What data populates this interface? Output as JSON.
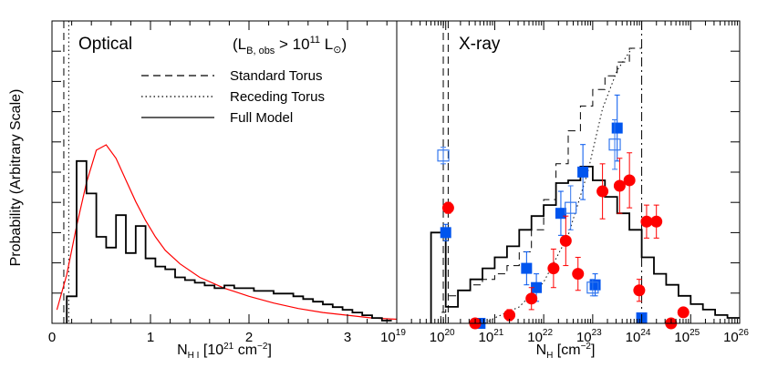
{
  "chart_data": [
    {
      "type": "line",
      "panel": "left",
      "title": "Optical",
      "subtitle": "(L_B,obs > 10^11 L_sun)",
      "title_text": "Optical",
      "subtitle_parts": {
        "open": "(L",
        "sub": "B, obs",
        "mid": " > 10",
        "sup": "11",
        "end": " L",
        "sun": "⊙",
        "close": ")"
      },
      "xlabel_parts": {
        "main": "N",
        "sub": "H I",
        "unit": " [10",
        "sup": "21",
        "tail": " cm",
        "sup2": "−2",
        "close": "]"
      },
      "ylabel": "Probability (Arbitrary Scale)",
      "xlim": [
        0,
        3.5
      ],
      "ylim": [
        0,
        1
      ],
      "xticks": [
        {
          "v": 0,
          "label": "0"
        },
        {
          "v": 1,
          "label": "1"
        },
        {
          "v": 2,
          "label": "2"
        },
        {
          "v": 3,
          "label": "3"
        }
      ],
      "legend": {
        "position": "top-center",
        "entries": [
          {
            "label": "Standard Torus",
            "style": "dashed"
          },
          {
            "label": "Receding Torus",
            "style": "dotted"
          },
          {
            "label": "Full Model",
            "style": "solid"
          }
        ]
      },
      "vlines": [
        {
          "x": 0.12,
          "style": "dashed"
        },
        {
          "x": 0.17,
          "style": "dotted"
        }
      ],
      "histogram": {
        "name": "Full Model",
        "edges": [
          0.15,
          0.25,
          0.35,
          0.45,
          0.55,
          0.65,
          0.75,
          0.85,
          0.95,
          1.05,
          1.15,
          1.25,
          1.35,
          1.45,
          1.55,
          1.65,
          1.75,
          1.85,
          1.95,
          2.05,
          2.15,
          2.25,
          2.35,
          2.45,
          2.55,
          2.65,
          2.75,
          2.85,
          2.95,
          3.05,
          3.15,
          3.25,
          3.35,
          3.45
        ],
        "values": [
          0.1,
          0.6,
          0.48,
          0.32,
          0.28,
          0.4,
          0.26,
          0.36,
          0.24,
          0.21,
          0.2,
          0.17,
          0.16,
          0.15,
          0.14,
          0.13,
          0.14,
          0.13,
          0.13,
          0.12,
          0.12,
          0.11,
          0.11,
          0.1,
          0.09,
          0.08,
          0.07,
          0.06,
          0.05,
          0.04,
          0.03,
          0.02,
          0.01
        ]
      },
      "curve": {
        "name": "Red model",
        "color": "#ff0000",
        "x": [
          0.05,
          0.15,
          0.25,
          0.35,
          0.45,
          0.55,
          0.65,
          0.75,
          0.85,
          0.95,
          1.05,
          1.15,
          1.3,
          1.5,
          1.75,
          2.0,
          2.25,
          2.5,
          2.75,
          3.0,
          3.25,
          3.5
        ],
        "y": [
          0.05,
          0.18,
          0.36,
          0.52,
          0.64,
          0.66,
          0.61,
          0.53,
          0.45,
          0.38,
          0.32,
          0.27,
          0.22,
          0.17,
          0.13,
          0.1,
          0.075,
          0.055,
          0.04,
          0.03,
          0.02,
          0.015
        ]
      }
    },
    {
      "type": "scatter",
      "panel": "right",
      "title": "X-ray",
      "xlabel_parts": {
        "main": "N",
        "sub": "H",
        "unit": " [cm",
        "sup": "−2",
        "close": "]"
      },
      "xscale": "log",
      "xlim": [
        19,
        26
      ],
      "ylim": [
        0,
        1
      ],
      "xticks": [
        {
          "v": 19,
          "base": "10",
          "exp": "19"
        },
        {
          "v": 20,
          "base": "10",
          "exp": "20"
        },
        {
          "v": 21,
          "base": "10",
          "exp": "21"
        },
        {
          "v": 22,
          "base": "10",
          "exp": "22"
        },
        {
          "v": 23,
          "base": "10",
          "exp": "23"
        },
        {
          "v": 24,
          "base": "10",
          "exp": "24"
        },
        {
          "v": 25,
          "base": "10",
          "exp": "25"
        },
        {
          "v": 26,
          "base": "10",
          "exp": "26"
        }
      ],
      "vlines": [
        {
          "x": 19.95,
          "style": "dashed"
        },
        {
          "x": 20.05,
          "style": "dashed"
        },
        {
          "x": 24.0,
          "style": "dashdot"
        }
      ],
      "steps": [
        {
          "name": "Standard Torus",
          "style": "dashed",
          "edges": [
            19.9,
            20.0,
            20.25,
            20.5,
            20.75,
            21.0,
            21.25,
            21.5,
            21.75,
            22.0,
            22.25,
            22.5,
            22.75,
            23.0,
            23.25,
            23.5,
            23.75,
            24.0
          ],
          "values": [
            0.04,
            0.1,
            0.12,
            0.14,
            0.16,
            0.18,
            0.21,
            0.26,
            0.34,
            0.45,
            0.58,
            0.7,
            0.79,
            0.85,
            0.9,
            0.95,
            1.0
          ]
        },
        {
          "name": "Full Model",
          "style": "solid",
          "edges": [
            19.7,
            19.9,
            20.0,
            20.25,
            20.5,
            20.75,
            21.0,
            21.25,
            21.5,
            21.75,
            22.0,
            22.25,
            22.5,
            22.75,
            23.0,
            23.25,
            23.5,
            23.75,
            24.0,
            24.25,
            24.5,
            24.75,
            25.0,
            25.25,
            25.5,
            25.75,
            26.0
          ],
          "values": [
            0.33,
            0.33,
            0.06,
            0.12,
            0.16,
            0.2,
            0.24,
            0.28,
            0.34,
            0.39,
            0.43,
            0.51,
            0.52,
            0.57,
            0.52,
            0.46,
            0.4,
            0.34,
            0.24,
            0.18,
            0.14,
            0.1,
            0.07,
            0.05,
            0.03,
            0.02
          ]
        }
      ],
      "curves": [
        {
          "name": "Receding Torus",
          "style": "dotted",
          "x": [
            20.8,
            21.0,
            21.5,
            22.0,
            22.5,
            22.9,
            23.2,
            23.5,
            23.8
          ],
          "y": [
            0.0,
            0.02,
            0.06,
            0.15,
            0.32,
            0.55,
            0.78,
            0.92,
            1.0
          ]
        }
      ],
      "series": [
        {
          "name": "Filled squares",
          "marker": "square",
          "filled": true,
          "color": "#0055ee",
          "points": [
            {
              "x": 20.0,
              "y": 0.33,
              "err": 0.03
            },
            {
              "x": 20.7,
              "y": 0.0,
              "err": 0.0
            },
            {
              "x": 21.65,
              "y": 0.2,
              "err": 0.06
            },
            {
              "x": 21.85,
              "y": 0.13,
              "err": 0.05
            },
            {
              "x": 22.35,
              "y": 0.4,
              "err": 0.08
            },
            {
              "x": 22.8,
              "y": 0.55,
              "err": 0.1
            },
            {
              "x": 23.5,
              "y": 0.71,
              "err": 0.12
            },
            {
              "x": 23.05,
              "y": 0.14,
              "err": 0.04
            },
            {
              "x": 24.0,
              "y": 0.02,
              "err": 0.0
            }
          ]
        },
        {
          "name": "Open squares",
          "marker": "square",
          "filled": false,
          "color": "#3377ee",
          "points": [
            {
              "x": 19.95,
              "y": 0.61,
              "err": 0.03
            },
            {
              "x": 22.55,
              "y": 0.42,
              "err": 0.08
            },
            {
              "x": 23.45,
              "y": 0.65,
              "err": 0.09
            },
            {
              "x": 23.0,
              "y": 0.13,
              "err": 0.03
            }
          ]
        },
        {
          "name": "Red circles",
          "marker": "circle",
          "filled": true,
          "color": "#ff0000",
          "points": [
            {
              "x": 20.05,
              "y": 0.42,
              "err": 0.02
            },
            {
              "x": 20.6,
              "y": 0.0,
              "err": 0.0
            },
            {
              "x": 21.3,
              "y": 0.03,
              "err": 0.02
            },
            {
              "x": 21.75,
              "y": 0.09,
              "err": 0.04
            },
            {
              "x": 22.2,
              "y": 0.2,
              "err": 0.07
            },
            {
              "x": 22.45,
              "y": 0.3,
              "err": 0.09
            },
            {
              "x": 22.7,
              "y": 0.18,
              "err": 0.06
            },
            {
              "x": 23.2,
              "y": 0.48,
              "err": 0.1
            },
            {
              "x": 23.55,
              "y": 0.5,
              "err": 0.1
            },
            {
              "x": 23.75,
              "y": 0.52,
              "err": 0.1
            },
            {
              "x": 23.95,
              "y": 0.12,
              "err": 0.04
            },
            {
              "x": 24.1,
              "y": 0.37,
              "err": 0.06
            },
            {
              "x": 24.3,
              "y": 0.37,
              "err": 0.06
            },
            {
              "x": 24.6,
              "y": 0.0,
              "err": 0.0
            },
            {
              "x": 24.85,
              "y": 0.04,
              "err": 0.0
            }
          ]
        }
      ]
    }
  ]
}
